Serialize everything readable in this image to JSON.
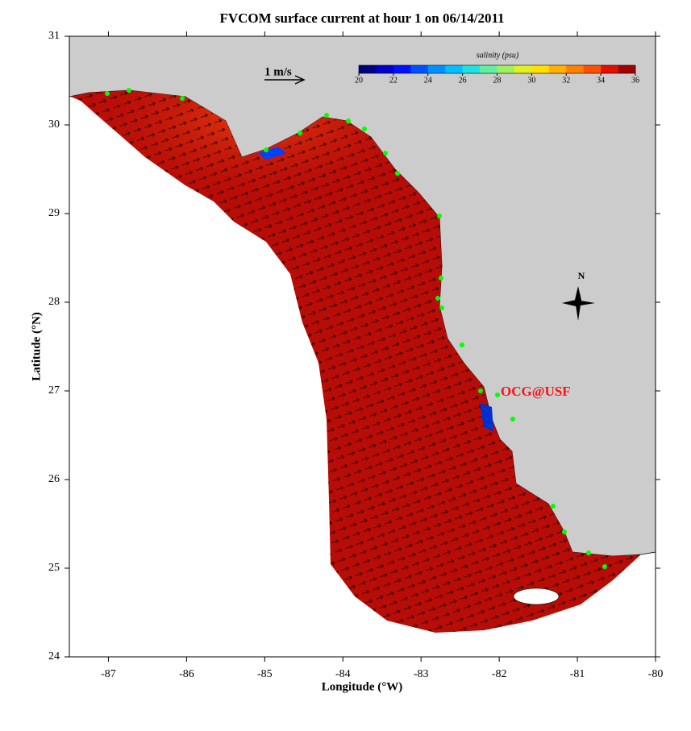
{
  "chart_data": {
    "type": "map",
    "title": "FVCOM surface current at hour 1 on 06/14/2011",
    "xlabel": "Longitude (°W)",
    "ylabel": "Latitude (°N)",
    "xlim": [
      -87.5,
      -80
    ],
    "ylim": [
      24,
      31
    ],
    "xticks": [
      -87,
      -86,
      -85,
      -84,
      -83,
      -82,
      -81,
      -80
    ],
    "yticks": [
      24,
      25,
      26,
      27,
      28,
      29,
      30,
      31
    ],
    "scale_label": "1 m/s",
    "annotation": "OCG@USF",
    "north_label": "N",
    "colorbar": {
      "label": "salinity (psu)",
      "lim": [
        20,
        36
      ],
      "ticks": [
        20,
        22,
        24,
        26,
        28,
        30,
        32,
        34,
        36
      ],
      "colors": [
        "#00007f",
        "#0000c8",
        "#0010ff",
        "#0050ff",
        "#0090ff",
        "#00c0ff",
        "#20e0e0",
        "#60f0a0",
        "#a0f060",
        "#e0f020",
        "#ffe000",
        "#ffb000",
        "#ff8000",
        "#ff5000",
        "#e01000",
        "#a00000"
      ]
    }
  }
}
